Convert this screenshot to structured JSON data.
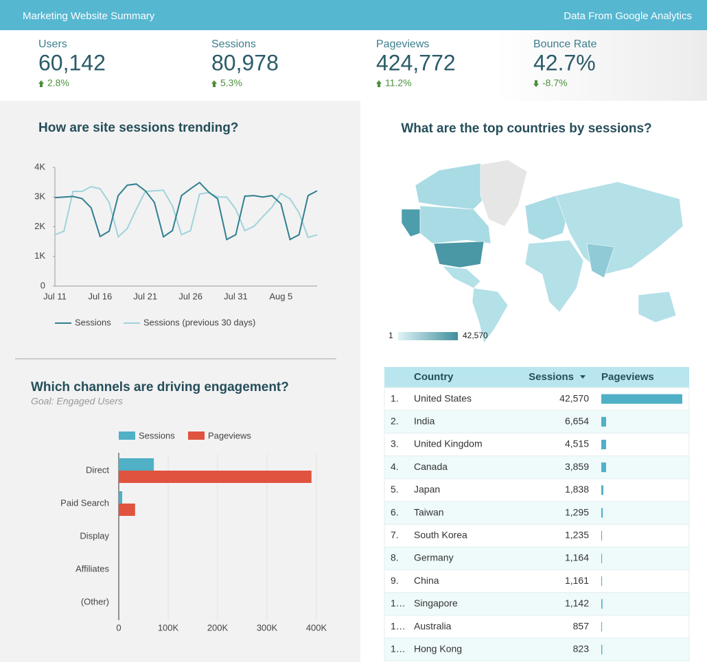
{
  "header": {
    "title": "Marketing Website Summary",
    "source": "Data From Google Analytics"
  },
  "kpis": [
    {
      "label": "Users",
      "value": "60,142",
      "change": "2.8%"
    },
    {
      "label": "Sessions",
      "value": "80,978",
      "change": "5.3%"
    },
    {
      "label": "Pageviews",
      "value": "424,772",
      "change": "11.2%"
    },
    {
      "label": "Bounce Rate",
      "value": "42.7%",
      "change": "-8.7%"
    }
  ],
  "chart_data": [
    {
      "type": "line",
      "title": "How are site sessions trending?",
      "categories": [
        "Jul 11",
        null,
        null,
        null,
        null,
        "Jul 16",
        null,
        null,
        null,
        null,
        "Jul 21",
        null,
        null,
        null,
        null,
        "Jul 26",
        null,
        null,
        null,
        null,
        "Jul 31",
        null,
        null,
        null,
        null,
        "Aug 5",
        null,
        null,
        null,
        null
      ],
      "series": [
        {
          "name": "Sessions",
          "color": "#2f7f8f",
          "values": [
            2980,
            3000,
            3020,
            2950,
            2640,
            1670,
            1850,
            3050,
            3400,
            3440,
            3210,
            2820,
            1660,
            1870,
            3050,
            3280,
            3490,
            3170,
            2940,
            1570,
            1730,
            3030,
            3050,
            3000,
            3050,
            2770,
            1570,
            1730,
            3050,
            3210
          ]
        },
        {
          "name": "Sessions (previous 30 days)",
          "color": "#9fd3dc",
          "values": [
            1730,
            1850,
            3190,
            3190,
            3350,
            3280,
            2820,
            1660,
            1940,
            2590,
            3190,
            3210,
            3230,
            2700,
            1730,
            1870,
            3100,
            3150,
            3000,
            3000,
            2590,
            1870,
            2010,
            2340,
            2660,
            3120,
            2940,
            2470,
            1640,
            1730
          ]
        }
      ],
      "ylim": [
        0,
        4000
      ],
      "yticks": [
        0,
        {
          "value": 1000,
          "label": "1K"
        },
        {
          "value": 2000,
          "label": "2K"
        },
        {
          "value": 3000,
          "label": "3K"
        },
        {
          "value": 4000,
          "label": "4K"
        }
      ]
    },
    {
      "type": "hbar",
      "title": "Which channels are driving engagement?",
      "subtitle": "Goal: Engaged Users",
      "categories": [
        "Direct",
        "Paid Search",
        "Display",
        "Affiliates",
        "(Other)"
      ],
      "series": [
        {
          "name": "Sessions",
          "color": "#4fb0c6",
          "values": [
            71000,
            7000,
            0,
            0,
            0
          ]
        },
        {
          "name": "Pageviews",
          "color": "#e0533f",
          "values": [
            390000,
            33000,
            0,
            0,
            0
          ]
        }
      ],
      "xlim": [
        0,
        400000
      ],
      "xticks": [
        0,
        {
          "value": 100000,
          "label": "100K"
        },
        {
          "value": 200000,
          "label": "200K"
        },
        {
          "value": 300000,
          "label": "300K"
        },
        {
          "value": 400000,
          "label": "400K"
        }
      ],
      "grid": true
    }
  ],
  "map": {
    "title": "What are the top countries by sessions?",
    "legend": [
      "1",
      "42,570"
    ]
  },
  "table": {
    "headers": [
      "Country",
      "Sessions",
      "Pageviews"
    ],
    "rows": [
      {
        "rank": "1.",
        "country": "United States",
        "sessions": "42,570",
        "pageviews": 220000
      },
      {
        "rank": "2.",
        "country": "India",
        "sessions": "6,654",
        "pageviews": 13000
      },
      {
        "rank": "3.",
        "country": "United Kingdom",
        "sessions": "4,515",
        "pageviews": 13000
      },
      {
        "rank": "4.",
        "country": "Canada",
        "sessions": "3,859",
        "pageviews": 13000
      },
      {
        "rank": "5.",
        "country": "Japan",
        "sessions": "1,838",
        "pageviews": 5500
      },
      {
        "rank": "6.",
        "country": "Taiwan",
        "sessions": "1,295",
        "pageviews": 4000
      },
      {
        "rank": "7.",
        "country": "South Korea",
        "sessions": "1,235",
        "pageviews": 2000
      },
      {
        "rank": "8.",
        "country": "Germany",
        "sessions": "1,164",
        "pageviews": 2000
      },
      {
        "rank": "9.",
        "country": "China",
        "sessions": "1,161",
        "pageviews": 2000
      },
      {
        "rank": "1…",
        "country": "Singapore",
        "sessions": "1,142",
        "pageviews": 3000
      },
      {
        "rank": "1…",
        "country": "Australia",
        "sessions": "857",
        "pageviews": 2000
      },
      {
        "rank": "1…",
        "country": "Hong Kong",
        "sessions": "823",
        "pageviews": 2500
      }
    ]
  }
}
